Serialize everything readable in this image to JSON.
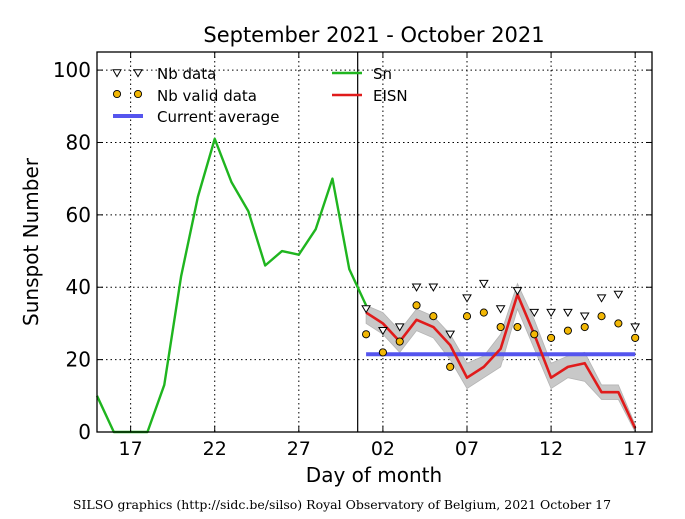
{
  "chart_data": {
    "type": "line",
    "title": "September 2021 - October 2021",
    "xlabel": "Day of month",
    "ylabel": "Sunspot Number",
    "ylim": [
      0,
      105
    ],
    "yticks": [
      0,
      20,
      40,
      60,
      80,
      100
    ],
    "xlim_days": [
      0,
      33
    ],
    "xticks": [
      {
        "day": 2,
        "label": "17"
      },
      {
        "day": 7,
        "label": "22"
      },
      {
        "day": 12,
        "label": "27"
      },
      {
        "day": 17,
        "label": "02"
      },
      {
        "day": 22,
        "label": "07"
      },
      {
        "day": 27,
        "label": "12"
      },
      {
        "day": 32,
        "label": "17"
      }
    ],
    "grid": true,
    "legend_position": "top-left",
    "legend": [
      {
        "key": "nb_data",
        "label": "Nb data"
      },
      {
        "key": "nb_valid",
        "label": "Nb valid data"
      },
      {
        "key": "current_average",
        "label": "Current average"
      },
      {
        "key": "sn",
        "label": "Sn"
      },
      {
        "key": "eisn",
        "label": "EISN"
      }
    ],
    "divider_day": 15.5,
    "series": [
      {
        "key": "sn",
        "name": "Sn",
        "color": "#1fb51f",
        "points": [
          [
            0,
            10
          ],
          [
            1,
            0
          ],
          [
            2,
            0
          ],
          [
            3,
            0
          ],
          [
            4,
            13
          ],
          [
            5,
            43
          ],
          [
            6,
            65
          ],
          [
            7,
            81
          ],
          [
            8,
            69
          ],
          [
            9,
            61
          ],
          [
            10,
            46
          ],
          [
            11,
            50
          ],
          [
            12,
            49
          ],
          [
            13,
            56
          ],
          [
            14,
            70
          ],
          [
            15,
            45
          ],
          [
            16,
            35
          ]
        ]
      },
      {
        "key": "eisn",
        "name": "EISN",
        "color": "#e01b1b",
        "points": [
          [
            16,
            33
          ],
          [
            17,
            30
          ],
          [
            18,
            25
          ],
          [
            19,
            31
          ],
          [
            20,
            29
          ],
          [
            21,
            24
          ],
          [
            22,
            15
          ],
          [
            23,
            18
          ],
          [
            24,
            23
          ],
          [
            25,
            38
          ],
          [
            26,
            27
          ],
          [
            27,
            15
          ],
          [
            28,
            18
          ],
          [
            29,
            19
          ],
          [
            30,
            11
          ],
          [
            31,
            11
          ],
          [
            32,
            1
          ]
        ],
        "band_upper": [
          [
            16,
            35
          ],
          [
            17,
            33
          ],
          [
            18,
            28
          ],
          [
            19,
            34
          ],
          [
            20,
            32
          ],
          [
            21,
            27
          ],
          [
            22,
            19
          ],
          [
            23,
            21
          ],
          [
            24,
            27
          ],
          [
            25,
            41
          ],
          [
            26,
            31
          ],
          [
            27,
            19
          ],
          [
            28,
            21
          ],
          [
            29,
            22
          ],
          [
            30,
            13
          ],
          [
            31,
            13
          ],
          [
            32,
            2
          ]
        ],
        "band_lower": [
          [
            16,
            30
          ],
          [
            17,
            27
          ],
          [
            18,
            22
          ],
          [
            19,
            28
          ],
          [
            20,
            26
          ],
          [
            21,
            20
          ],
          [
            22,
            12
          ],
          [
            23,
            15
          ],
          [
            24,
            18
          ],
          [
            25,
            34
          ],
          [
            26,
            23
          ],
          [
            27,
            12
          ],
          [
            28,
            15
          ],
          [
            29,
            14
          ],
          [
            30,
            9
          ],
          [
            31,
            9
          ],
          [
            32,
            0
          ]
        ]
      },
      {
        "key": "nb_data",
        "name": "Nb data",
        "marker": "triangle-down",
        "points": [
          [
            16,
            34
          ],
          [
            17,
            28
          ],
          [
            18,
            29
          ],
          [
            19,
            40
          ],
          [
            20,
            40
          ],
          [
            21,
            27
          ],
          [
            22,
            37
          ],
          [
            23,
            41
          ],
          [
            24,
            34
          ],
          [
            25,
            39
          ],
          [
            26,
            33
          ],
          [
            27,
            33
          ],
          [
            28,
            33
          ],
          [
            29,
            32
          ],
          [
            30,
            37
          ],
          [
            31,
            38
          ],
          [
            32,
            29
          ]
        ]
      },
      {
        "key": "nb_valid",
        "name": "Nb valid data",
        "marker": "circle",
        "color": "#f2b705",
        "points": [
          [
            16,
            27
          ],
          [
            17,
            22
          ],
          [
            18,
            25
          ],
          [
            19,
            35
          ],
          [
            20,
            32
          ],
          [
            21,
            18
          ],
          [
            22,
            32
          ],
          [
            23,
            33
          ],
          [
            24,
            29
          ],
          [
            25,
            29
          ],
          [
            26,
            27
          ],
          [
            27,
            26
          ],
          [
            28,
            28
          ],
          [
            29,
            29
          ],
          [
            30,
            32
          ],
          [
            31,
            30
          ],
          [
            32,
            26
          ]
        ]
      },
      {
        "key": "current_average",
        "name": "Current average",
        "color": "#5555ee",
        "value": 21.5,
        "x_range": [
          16,
          32
        ]
      }
    ]
  },
  "footer": {
    "credit": "SILSO graphics (http://sidc.be/silso) Royal Observatory of Belgium, 2021 October 17"
  }
}
